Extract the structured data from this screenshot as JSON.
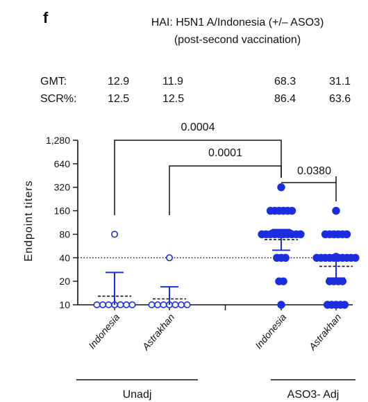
{
  "panel_label": "f",
  "chart_data": {
    "type": "scatter",
    "title": "HAI: H5N1 A/Indonesia (+/– ASO3)",
    "subtitle": "(post-second vaccination)",
    "ylabel": "Endpoint titers",
    "yscale": "log2",
    "ylim": [
      10,
      1280
    ],
    "yticks": [
      "10",
      "20",
      "40",
      "80",
      "160",
      "320",
      "640",
      "1,280"
    ],
    "threshold": 40,
    "stats": [
      {
        "label": "GMT:",
        "values": [
          "12.9",
          "11.9",
          "68.3",
          "31.1"
        ]
      },
      {
        "label": "SCR%:",
        "values": [
          "12.5",
          "12.5",
          "86.4",
          "63.6"
        ]
      }
    ],
    "groups": [
      {
        "label": "Unadj",
        "categories": [
          "Indonesia",
          "Astrakhan"
        ]
      },
      {
        "label": "ASO3- Adj",
        "categories": [
          "Indonesia",
          "Astrakhan"
        ]
      }
    ],
    "series": [
      {
        "category": "Indonesia",
        "group": "Unadj",
        "fill": "open",
        "gmt": 12.9,
        "ci": [
          10,
          26
        ],
        "values": [
          10,
          10,
          10,
          10,
          10,
          10,
          10,
          80
        ]
      },
      {
        "category": "Astrakhan",
        "group": "Unadj",
        "fill": "open",
        "gmt": 11.9,
        "ci": [
          10,
          17
        ],
        "values": [
          10,
          10,
          10,
          10,
          10,
          10,
          10,
          40
        ]
      },
      {
        "category": "Indonesia",
        "group": "ASO3- Adj",
        "fill": "solid",
        "gmt": 68.3,
        "ci": [
          50,
          92
        ],
        "values": [
          10,
          20,
          20,
          40,
          40,
          40,
          80,
          80,
          80,
          80,
          80,
          80,
          80,
          80,
          80,
          80,
          80,
          80,
          80,
          80,
          80,
          160,
          160,
          160,
          160,
          160,
          160,
          320
        ]
      },
      {
        "category": "Astrakhan",
        "group": "ASO3- Adj",
        "fill": "solid",
        "gmt": 31.1,
        "ci": [
          22,
          43
        ],
        "values": [
          10,
          10,
          10,
          10,
          10,
          20,
          20,
          20,
          20,
          40,
          40,
          40,
          40,
          40,
          40,
          40,
          40,
          40,
          40,
          40,
          80,
          80,
          80,
          80,
          80,
          80,
          160
        ]
      }
    ],
    "comparisons": [
      {
        "from": 0,
        "to": 2,
        "p": "0.0004"
      },
      {
        "from": 1,
        "to": 2,
        "p": "0.0001"
      },
      {
        "from": 2,
        "to": 3,
        "p": "0.0380"
      }
    ],
    "colors": {
      "points": "#1a2ee0",
      "text": "#111111",
      "errorbar": "#1a2ee0",
      "gmt_line": "#111111"
    }
  }
}
